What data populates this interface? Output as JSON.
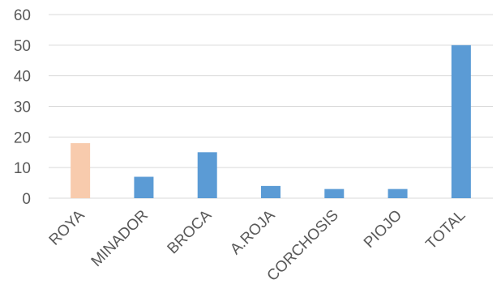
{
  "chart_data": {
    "type": "bar",
    "title": "",
    "xlabel": "",
    "ylabel": "",
    "categories": [
      "ROYA",
      "MINADOR",
      "BROCA",
      "A.ROJA",
      "CORCHOSIS",
      "PIOJO",
      "TOTAL"
    ],
    "values": [
      18,
      7,
      15,
      4,
      3,
      3,
      50
    ],
    "ylim": [
      0,
      60
    ],
    "yticks": [
      0,
      10,
      20,
      30,
      40,
      50,
      60
    ],
    "grid": true,
    "legend": "none",
    "bar_colors": [
      "#f8cbad",
      "#5b9bd5",
      "#5b9bd5",
      "#5b9bd5",
      "#5b9bd5",
      "#5b9bd5",
      "#5b9bd5"
    ],
    "x_label_rotation": -45
  }
}
